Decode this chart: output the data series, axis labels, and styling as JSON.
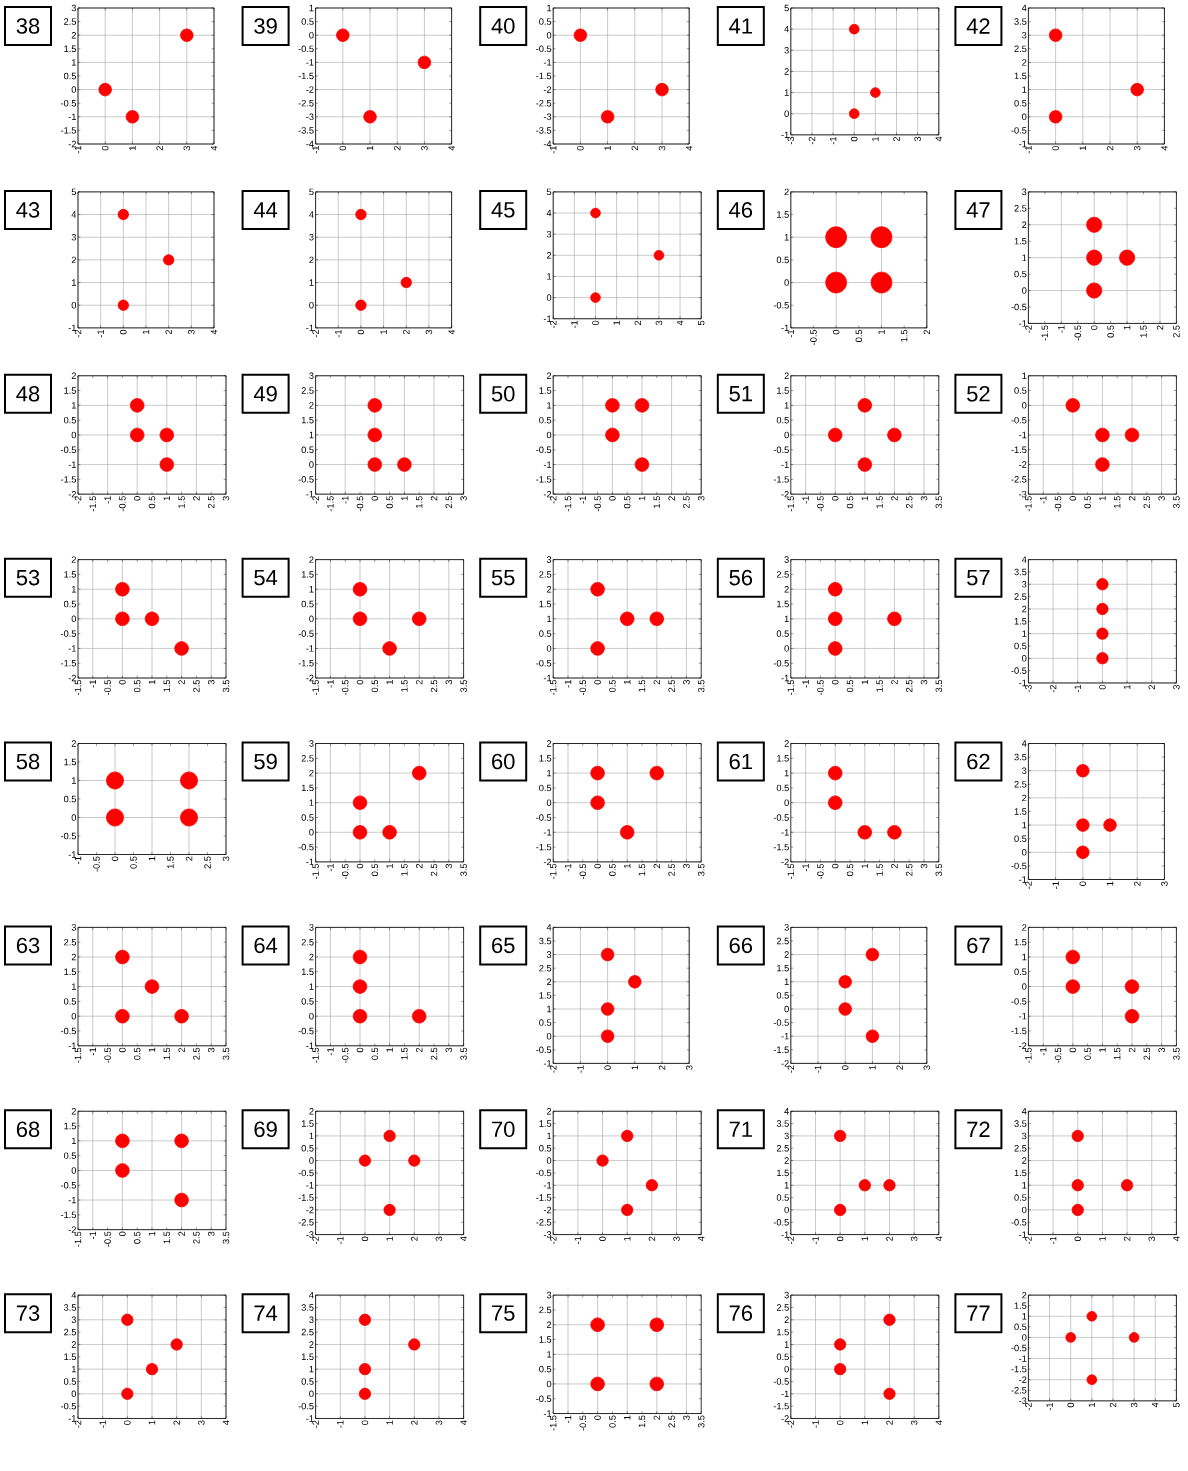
{
  "chart_data": [
    {
      "type": "scatter",
      "title": "38",
      "x": [
        0,
        1,
        3
      ],
      "values": [
        0,
        -1,
        2
      ],
      "color": "#ff0000",
      "marker": "circle",
      "grid": true,
      "xlim": [
        -1,
        4
      ],
      "ylim": [
        -2,
        3
      ],
      "xticks": [
        -1,
        0,
        1,
        2,
        3,
        4
      ],
      "yticks": [
        -2,
        -1.5,
        -1,
        -0.5,
        0,
        0.5,
        1,
        1.5,
        2,
        2.5,
        3
      ]
    },
    {
      "type": "scatter",
      "title": "39",
      "x": [
        0,
        3,
        1
      ],
      "values": [
        0,
        -1,
        -3
      ],
      "color": "#ff0000",
      "marker": "circle",
      "grid": true,
      "xlim": [
        -1,
        4
      ],
      "ylim": [
        -4,
        1
      ],
      "xticks": [
        -1,
        0,
        1,
        2,
        3,
        4
      ],
      "yticks": [
        -4,
        -3.5,
        -3,
        -2.5,
        -2,
        -1.5,
        -1,
        -0.5,
        0,
        0.5,
        1
      ]
    },
    {
      "type": "scatter",
      "title": "40",
      "x": [
        0,
        3,
        1
      ],
      "values": [
        0,
        -2,
        -3
      ],
      "color": "#ff0000",
      "marker": "circle",
      "grid": true,
      "xlim": [
        -1,
        4
      ],
      "ylim": [
        -4,
        1
      ],
      "xticks": [
        -1,
        0,
        1,
        2,
        3,
        4
      ],
      "yticks": [
        -4,
        -3.5,
        -3,
        -2.5,
        -2,
        -1.5,
        -1,
        -0.5,
        0,
        0.5,
        1
      ]
    },
    {
      "type": "scatter",
      "title": "41",
      "x": [
        0,
        1,
        0
      ],
      "values": [
        4,
        1,
        0
      ],
      "color": "#ff0000",
      "marker": "circle",
      "grid": true,
      "xlim": [
        -3,
        4
      ],
      "ylim": [
        -1,
        5
      ],
      "xticks": [
        -3,
        -2,
        -1,
        0,
        1,
        2,
        3,
        4
      ],
      "yticks": [
        -1,
        0,
        1,
        2,
        3,
        4,
        5
      ]
    },
    {
      "type": "scatter",
      "title": "42",
      "x": [
        0,
        3,
        0
      ],
      "values": [
        3,
        1,
        0
      ],
      "color": "#ff0000",
      "marker": "circle",
      "grid": true,
      "xlim": [
        -1,
        4
      ],
      "ylim": [
        -1,
        4
      ],
      "xticks": [
        -1,
        0,
        1,
        2,
        3,
        4
      ],
      "yticks": [
        -1,
        -0.5,
        0,
        0.5,
        1,
        1.5,
        2,
        2.5,
        3,
        3.5,
        4
      ]
    },
    {
      "type": "scatter",
      "title": "43",
      "x": [
        0,
        2,
        0
      ],
      "values": [
        4,
        2,
        0
      ],
      "color": "#ff0000",
      "marker": "circle",
      "grid": true,
      "xlim": [
        -2,
        4
      ],
      "ylim": [
        -1,
        5
      ],
      "xticks": [
        -2,
        -1,
        0,
        1,
        2,
        3,
        4
      ],
      "yticks": [
        -1,
        0,
        1,
        2,
        3,
        4,
        5
      ]
    },
    {
      "type": "scatter",
      "title": "44",
      "x": [
        0,
        2,
        0
      ],
      "values": [
        4,
        1,
        0
      ],
      "color": "#ff0000",
      "marker": "circle",
      "grid": true,
      "xlim": [
        -2,
        4
      ],
      "ylim": [
        -1,
        5
      ],
      "xticks": [
        -2,
        -1,
        0,
        1,
        2,
        3,
        4
      ],
      "yticks": [
        -1,
        0,
        1,
        2,
        3,
        4,
        5
      ]
    },
    {
      "type": "scatter",
      "title": "45",
      "x": [
        0,
        3,
        0
      ],
      "values": [
        4,
        2,
        0
      ],
      "color": "#ff0000",
      "marker": "circle",
      "grid": true,
      "xlim": [
        -2,
        5
      ],
      "ylim": [
        -1,
        5
      ],
      "xticks": [
        -2,
        -1,
        0,
        1,
        2,
        3,
        4,
        5
      ],
      "yticks": [
        -1,
        0,
        1,
        2,
        3,
        4,
        5
      ]
    },
    {
      "type": "scatter",
      "title": "46",
      "x": [
        0,
        1,
        0,
        1
      ],
      "values": [
        1,
        1,
        0,
        0
      ],
      "color": "#ff0000",
      "marker": "circle",
      "grid": true,
      "xlim": [
        -1,
        2
      ],
      "ylim": [
        -1,
        2
      ],
      "xticks": [
        -1,
        -0.5,
        0,
        0.5,
        1,
        1.5,
        2
      ],
      "yticks": [
        -1,
        -0.5,
        0,
        0.5,
        1,
        1.5,
        2
      ]
    },
    {
      "type": "scatter",
      "title": "47",
      "x": [
        0,
        0,
        1,
        0
      ],
      "values": [
        2,
        1,
        1,
        0
      ],
      "color": "#ff0000",
      "marker": "circle",
      "grid": true,
      "xlim": [
        -2,
        2.5
      ],
      "ylim": [
        -1,
        3
      ],
      "xticks": [
        -2,
        -1.5,
        -1,
        -0.5,
        0,
        0.5,
        1,
        1.5,
        2,
        2.5
      ],
      "yticks": [
        -1,
        -0.5,
        0,
        0.5,
        1,
        1.5,
        2,
        2.5,
        3
      ]
    },
    {
      "type": "scatter",
      "title": "48",
      "x": [
        0,
        0,
        1,
        1
      ],
      "values": [
        1,
        0,
        0,
        -1
      ],
      "color": "#ff0000",
      "marker": "circle",
      "grid": true,
      "xlim": [
        -2,
        3
      ],
      "ylim": [
        -2,
        2
      ],
      "xticks": [
        -2,
        -1.5,
        -1,
        -0.5,
        0,
        0.5,
        1,
        1.5,
        2,
        2.5,
        3
      ],
      "yticks": [
        -2,
        -1.5,
        -1,
        -0.5,
        0,
        0.5,
        1,
        1.5,
        2
      ]
    },
    {
      "type": "scatter",
      "title": "49",
      "x": [
        0,
        0,
        0,
        1
      ],
      "values": [
        2,
        1,
        0,
        0
      ],
      "color": "#ff0000",
      "marker": "circle",
      "grid": true,
      "xlim": [
        -2,
        3
      ],
      "ylim": [
        -1,
        3
      ],
      "xticks": [
        -2,
        -1.5,
        -1,
        -0.5,
        0,
        0.5,
        1,
        1.5,
        2,
        2.5,
        3
      ],
      "yticks": [
        -1,
        -0.5,
        0,
        0.5,
        1,
        1.5,
        2,
        2.5,
        3
      ]
    },
    {
      "type": "scatter",
      "title": "50",
      "x": [
        0,
        1,
        0,
        1
      ],
      "values": [
        1,
        1,
        0,
        -1
      ],
      "color": "#ff0000",
      "marker": "circle",
      "grid": true,
      "xlim": [
        -2,
        3
      ],
      "ylim": [
        -2,
        2
      ],
      "xticks": [
        -2,
        -1.5,
        -1,
        -0.5,
        0,
        0.5,
        1,
        1.5,
        2,
        2.5,
        3
      ],
      "yticks": [
        -2,
        -1.5,
        -1,
        -0.5,
        0,
        0.5,
        1,
        1.5,
        2
      ]
    },
    {
      "type": "scatter",
      "title": "51",
      "x": [
        1,
        0,
        2,
        1
      ],
      "values": [
        1,
        0,
        0,
        -1
      ],
      "color": "#ff0000",
      "marker": "circle",
      "grid": true,
      "xlim": [
        -1.5,
        3.5
      ],
      "ylim": [
        -2,
        2
      ],
      "xticks": [
        -1.5,
        -1,
        -0.5,
        0,
        0.5,
        1,
        1.5,
        2,
        2.5,
        3,
        3.5
      ],
      "yticks": [
        -2,
        -1.5,
        -1,
        -0.5,
        0,
        0.5,
        1,
        1.5,
        2
      ]
    },
    {
      "type": "scatter",
      "title": "52",
      "x": [
        0,
        1,
        2,
        1
      ],
      "values": [
        0,
        -1,
        -1,
        -2
      ],
      "color": "#ff0000",
      "marker": "circle",
      "grid": true,
      "xlim": [
        -1.5,
        3.5
      ],
      "ylim": [
        -3,
        1
      ],
      "xticks": [
        -1.5,
        -1,
        -0.5,
        0,
        0.5,
        1,
        1.5,
        2,
        2.5,
        3,
        3.5
      ],
      "yticks": [
        -3,
        -2.5,
        -2,
        -1.5,
        -1,
        -0.5,
        0,
        0.5,
        1
      ]
    },
    {
      "type": "scatter",
      "title": "53",
      "x": [
        0,
        0,
        1,
        2
      ],
      "values": [
        1,
        0,
        0,
        -1
      ],
      "color": "#ff0000",
      "marker": "circle",
      "grid": true,
      "xlim": [
        -1.5,
        3.5
      ],
      "ylim": [
        -2,
        2
      ],
      "xticks": [
        -1.5,
        -1,
        -0.5,
        0,
        0.5,
        1,
        1.5,
        2,
        2.5,
        3,
        3.5
      ],
      "yticks": [
        -2,
        -1.5,
        -1,
        -0.5,
        0,
        0.5,
        1,
        1.5,
        2
      ]
    },
    {
      "type": "scatter",
      "title": "54",
      "x": [
        0,
        0,
        2,
        1
      ],
      "values": [
        1,
        0,
        0,
        -1
      ],
      "color": "#ff0000",
      "marker": "circle",
      "grid": true,
      "xlim": [
        -1.5,
        3.5
      ],
      "ylim": [
        -2,
        2
      ],
      "xticks": [
        -1.5,
        -1,
        -0.5,
        0,
        0.5,
        1,
        1.5,
        2,
        2.5,
        3,
        3.5
      ],
      "yticks": [
        -2,
        -1.5,
        -1,
        -0.5,
        0,
        0.5,
        1,
        1.5,
        2
      ]
    },
    {
      "type": "scatter",
      "title": "55",
      "x": [
        0,
        1,
        2,
        0
      ],
      "values": [
        2,
        1,
        1,
        0
      ],
      "color": "#ff0000",
      "marker": "circle",
      "grid": true,
      "xlim": [
        -1.5,
        3.5
      ],
      "ylim": [
        -1,
        3
      ],
      "xticks": [
        -1.5,
        -1,
        -0.5,
        0,
        0.5,
        1,
        1.5,
        2,
        2.5,
        3,
        3.5
      ],
      "yticks": [
        -1,
        -0.5,
        0,
        0.5,
        1,
        1.5,
        2,
        2.5,
        3
      ]
    },
    {
      "type": "scatter",
      "title": "56",
      "x": [
        0,
        0,
        2,
        0
      ],
      "values": [
        2,
        1,
        1,
        0
      ],
      "color": "#ff0000",
      "marker": "circle",
      "grid": true,
      "xlim": [
        -1.5,
        3.5
      ],
      "ylim": [
        -1,
        3
      ],
      "xticks": [
        -1.5,
        -1,
        -0.5,
        0,
        0.5,
        1,
        1.5,
        2,
        2.5,
        3,
        3.5
      ],
      "yticks": [
        -1,
        -0.5,
        0,
        0.5,
        1,
        1.5,
        2,
        2.5,
        3
      ]
    },
    {
      "type": "scatter",
      "title": "57",
      "x": [
        0,
        0,
        0,
        0
      ],
      "values": [
        3,
        2,
        1,
        0
      ],
      "color": "#ff0000",
      "marker": "circle",
      "grid": true,
      "xlim": [
        -3,
        3
      ],
      "ylim": [
        -1,
        4
      ],
      "xticks": [
        -3,
        -2,
        -1,
        0,
        1,
        2,
        3
      ],
      "yticks": [
        -1,
        -0.5,
        0,
        0.5,
        1,
        1.5,
        2,
        2.5,
        3,
        3.5,
        4
      ]
    },
    {
      "type": "scatter",
      "title": "58",
      "x": [
        0,
        2,
        0,
        2
      ],
      "values": [
        1,
        1,
        0,
        0
      ],
      "color": "#ff0000",
      "marker": "circle",
      "grid": true,
      "xlim": [
        -1,
        3
      ],
      "ylim": [
        -1,
        2
      ],
      "xticks": [
        -1,
        -0.5,
        0,
        0.5,
        1,
        1.5,
        2,
        2.5,
        3
      ],
      "yticks": [
        -1,
        -0.5,
        0,
        0.5,
        1,
        1.5,
        2
      ]
    },
    {
      "type": "scatter",
      "title": "59",
      "x": [
        2,
        0,
        0,
        1
      ],
      "values": [
        2,
        1,
        0,
        0
      ],
      "color": "#ff0000",
      "marker": "circle",
      "grid": true,
      "xlim": [
        -1.5,
        3.5
      ],
      "ylim": [
        -1,
        3
      ],
      "xticks": [
        -1.5,
        -1,
        -0.5,
        0,
        0.5,
        1,
        1.5,
        2,
        2.5,
        3,
        3.5
      ],
      "yticks": [
        -1,
        -0.5,
        0,
        0.5,
        1,
        1.5,
        2,
        2.5,
        3
      ]
    },
    {
      "type": "scatter",
      "title": "60",
      "x": [
        0,
        2,
        0,
        1
      ],
      "values": [
        1,
        1,
        0,
        -1
      ],
      "color": "#ff0000",
      "marker": "circle",
      "grid": true,
      "xlim": [
        -1.5,
        3.5
      ],
      "ylim": [
        -2,
        2
      ],
      "xticks": [
        -1.5,
        -1,
        -0.5,
        0,
        0.5,
        1,
        1.5,
        2,
        2.5,
        3,
        3.5
      ],
      "yticks": [
        -2,
        -1.5,
        -1,
        -0.5,
        0,
        0.5,
        1,
        1.5,
        2
      ]
    },
    {
      "type": "scatter",
      "title": "61",
      "x": [
        0,
        0,
        1,
        2
      ],
      "values": [
        1,
        0,
        -1,
        -1
      ],
      "color": "#ff0000",
      "marker": "circle",
      "grid": true,
      "xlim": [
        -1.5,
        3.5
      ],
      "ylim": [
        -2,
        2
      ],
      "xticks": [
        -1.5,
        -1,
        -0.5,
        0,
        0.5,
        1,
        1.5,
        2,
        2.5,
        3,
        3.5
      ],
      "yticks": [
        -2,
        -1.5,
        -1,
        -0.5,
        0,
        0.5,
        1,
        1.5,
        2
      ]
    },
    {
      "type": "scatter",
      "title": "62",
      "x": [
        0,
        0,
        1,
        0
      ],
      "values": [
        3,
        1,
        1,
        0
      ],
      "color": "#ff0000",
      "marker": "circle",
      "grid": true,
      "xlim": [
        -2,
        3
      ],
      "ylim": [
        -1,
        4
      ],
      "xticks": [
        -2,
        -1,
        0,
        1,
        2,
        3
      ],
      "yticks": [
        -1,
        -0.5,
        0,
        0.5,
        1,
        1.5,
        2,
        2.5,
        3,
        3.5,
        4
      ]
    },
    {
      "type": "scatter",
      "title": "63",
      "x": [
        0,
        1,
        0,
        2
      ],
      "values": [
        2,
        1,
        0,
        0
      ],
      "color": "#ff0000",
      "marker": "circle",
      "grid": true,
      "xlim": [
        -1.5,
        3.5
      ],
      "ylim": [
        -1,
        3
      ],
      "xticks": [
        -1.5,
        -1,
        -0.5,
        0,
        0.5,
        1,
        1.5,
        2,
        2.5,
        3,
        3.5
      ],
      "yticks": [
        -1,
        -0.5,
        0,
        0.5,
        1,
        1.5,
        2,
        2.5,
        3
      ]
    },
    {
      "type": "scatter",
      "title": "64",
      "x": [
        0,
        0,
        0,
        2
      ],
      "values": [
        2,
        1,
        0,
        0
      ],
      "color": "#ff0000",
      "marker": "circle",
      "grid": true,
      "xlim": [
        -1.5,
        3.5
      ],
      "ylim": [
        -1,
        3
      ],
      "xticks": [
        -1.5,
        -1,
        -0.5,
        0,
        0.5,
        1,
        1.5,
        2,
        2.5,
        3,
        3.5
      ],
      "yticks": [
        -1,
        -0.5,
        0,
        0.5,
        1,
        1.5,
        2,
        2.5,
        3
      ]
    },
    {
      "type": "scatter",
      "title": "65",
      "x": [
        0,
        1,
        0,
        0
      ],
      "values": [
        3,
        2,
        1,
        0
      ],
      "color": "#ff0000",
      "marker": "circle",
      "grid": true,
      "xlim": [
        -2,
        3
      ],
      "ylim": [
        -1,
        4
      ],
      "xticks": [
        -2,
        -1,
        0,
        1,
        2,
        3
      ],
      "yticks": [
        -1,
        -0.5,
        0,
        0.5,
        1,
        1.5,
        2,
        2.5,
        3,
        3.5,
        4
      ]
    },
    {
      "type": "scatter",
      "title": "66",
      "x": [
        1,
        0,
        0,
        1
      ],
      "values": [
        2,
        1,
        0,
        -1
      ],
      "color": "#ff0000",
      "marker": "circle",
      "grid": true,
      "xlim": [
        -2,
        3
      ],
      "ylim": [
        -2,
        3
      ],
      "xticks": [
        -2,
        -1,
        0,
        1,
        2,
        3
      ],
      "yticks": [
        -2,
        -1.5,
        -1,
        -0.5,
        0,
        0.5,
        1,
        1.5,
        2,
        2.5,
        3
      ]
    },
    {
      "type": "scatter",
      "title": "67",
      "x": [
        0,
        0,
        2,
        2
      ],
      "values": [
        1,
        0,
        0,
        -1
      ],
      "color": "#ff0000",
      "marker": "circle",
      "grid": true,
      "xlim": [
        -1.5,
        3.5
      ],
      "ylim": [
        -2,
        2
      ],
      "xticks": [
        -1.5,
        -1,
        -0.5,
        0,
        0.5,
        1,
        1.5,
        2,
        2.5,
        3,
        3.5
      ],
      "yticks": [
        -2,
        -1.5,
        -1,
        -0.5,
        0,
        0.5,
        1,
        1.5,
        2
      ]
    },
    {
      "type": "scatter",
      "title": "68",
      "x": [
        0,
        2,
        0,
        2
      ],
      "values": [
        1,
        1,
        0,
        -1
      ],
      "color": "#ff0000",
      "marker": "circle",
      "grid": true,
      "xlim": [
        -1.5,
        3.5
      ],
      "ylim": [
        -2,
        2
      ],
      "xticks": [
        -1.5,
        -1,
        -0.5,
        0,
        0.5,
        1,
        1.5,
        2,
        2.5,
        3,
        3.5
      ],
      "yticks": [
        -2,
        -1.5,
        -1,
        -0.5,
        0,
        0.5,
        1,
        1.5,
        2
      ]
    },
    {
      "type": "scatter",
      "title": "69",
      "x": [
        1,
        0,
        2,
        1
      ],
      "values": [
        1,
        0,
        0,
        -2
      ],
      "color": "#ff0000",
      "marker": "circle",
      "grid": true,
      "xlim": [
        -2,
        4
      ],
      "ylim": [
        -3,
        2
      ],
      "xticks": [
        -2,
        -1,
        0,
        1,
        2,
        3,
        4
      ],
      "yticks": [
        -3,
        -2.5,
        -2,
        -1.5,
        -1,
        -0.5,
        0,
        0.5,
        1,
        1.5,
        2
      ]
    },
    {
      "type": "scatter",
      "title": "70",
      "x": [
        1,
        0,
        2,
        1
      ],
      "values": [
        1,
        0,
        -1,
        -2
      ],
      "color": "#ff0000",
      "marker": "circle",
      "grid": true,
      "xlim": [
        -2,
        4
      ],
      "ylim": [
        -3,
        2
      ],
      "xticks": [
        -2,
        -1,
        0,
        1,
        2,
        3,
        4
      ],
      "yticks": [
        -3,
        -2.5,
        -2,
        -1.5,
        -1,
        -0.5,
        0,
        0.5,
        1,
        1.5,
        2
      ]
    },
    {
      "type": "scatter",
      "title": "71",
      "x": [
        0,
        1,
        2,
        0
      ],
      "values": [
        3,
        1,
        1,
        0
      ],
      "color": "#ff0000",
      "marker": "circle",
      "grid": true,
      "xlim": [
        -2,
        4
      ],
      "ylim": [
        -1,
        4
      ],
      "xticks": [
        -2,
        -1,
        0,
        1,
        2,
        3,
        4
      ],
      "yticks": [
        -1,
        -0.5,
        0,
        0.5,
        1,
        1.5,
        2,
        2.5,
        3,
        3.5,
        4
      ]
    },
    {
      "type": "scatter",
      "title": "72",
      "x": [
        0,
        0,
        2,
        0
      ],
      "values": [
        3,
        1,
        1,
        0
      ],
      "color": "#ff0000",
      "marker": "circle",
      "grid": true,
      "xlim": [
        -2,
        4
      ],
      "ylim": [
        -1,
        4
      ],
      "xticks": [
        -2,
        -1,
        0,
        1,
        2,
        3,
        4
      ],
      "yticks": [
        -1,
        -0.5,
        0,
        0.5,
        1,
        1.5,
        2,
        2.5,
        3,
        3.5,
        4
      ]
    },
    {
      "type": "scatter",
      "title": "73",
      "x": [
        0,
        2,
        1,
        0
      ],
      "values": [
        3,
        2,
        1,
        0
      ],
      "color": "#ff0000",
      "marker": "circle",
      "grid": true,
      "xlim": [
        -2,
        4
      ],
      "ylim": [
        -1,
        4
      ],
      "xticks": [
        -2,
        -1,
        0,
        1,
        2,
        3,
        4
      ],
      "yticks": [
        -1,
        -0.5,
        0,
        0.5,
        1,
        1.5,
        2,
        2.5,
        3,
        3.5,
        4
      ]
    },
    {
      "type": "scatter",
      "title": "74",
      "x": [
        0,
        2,
        0,
        0
      ],
      "values": [
        3,
        2,
        1,
        0
      ],
      "color": "#ff0000",
      "marker": "circle",
      "grid": true,
      "xlim": [
        -2,
        4
      ],
      "ylim": [
        -1,
        4
      ],
      "xticks": [
        -2,
        -1,
        0,
        1,
        2,
        3,
        4
      ],
      "yticks": [
        -1,
        -0.5,
        0,
        0.5,
        1,
        1.5,
        2,
        2.5,
        3,
        3.5,
        4
      ]
    },
    {
      "type": "scatter",
      "title": "75",
      "x": [
        0,
        2,
        0,
        2
      ],
      "values": [
        2,
        2,
        0,
        0
      ],
      "color": "#ff0000",
      "marker": "circle",
      "grid": true,
      "xlim": [
        -1.5,
        3.5
      ],
      "ylim": [
        -1,
        3
      ],
      "xticks": [
        -1.5,
        -1,
        -0.5,
        0,
        0.5,
        1,
        1.5,
        2,
        2.5,
        3,
        3.5
      ],
      "yticks": [
        -1,
        -0.5,
        0,
        0.5,
        1,
        1.5,
        2,
        2.5,
        3
      ]
    },
    {
      "type": "scatter",
      "title": "76",
      "x": [
        2,
        0,
        0,
        2
      ],
      "values": [
        2,
        1,
        0,
        -1
      ],
      "color": "#ff0000",
      "marker": "circle",
      "grid": true,
      "xlim": [
        -2,
        4
      ],
      "ylim": [
        -2,
        3
      ],
      "xticks": [
        -2,
        -1,
        0,
        1,
        2,
        3,
        4
      ],
      "yticks": [
        -2,
        -1.5,
        -1,
        -0.5,
        0,
        0.5,
        1,
        1.5,
        2,
        2.5,
        3
      ]
    },
    {
      "type": "scatter",
      "title": "77",
      "x": [
        1,
        0,
        3,
        1
      ],
      "values": [
        1,
        0,
        0,
        -2
      ],
      "color": "#ff0000",
      "marker": "circle",
      "grid": true,
      "xlim": [
        -2,
        5
      ],
      "ylim": [
        -3,
        2
      ],
      "xticks": [
        -2,
        -1,
        0,
        1,
        2,
        3,
        4,
        5
      ],
      "yticks": [
        -3,
        -2.5,
        -2,
        -1.5,
        -1,
        -0.5,
        0,
        0.5,
        1,
        1.5,
        2
      ]
    }
  ]
}
